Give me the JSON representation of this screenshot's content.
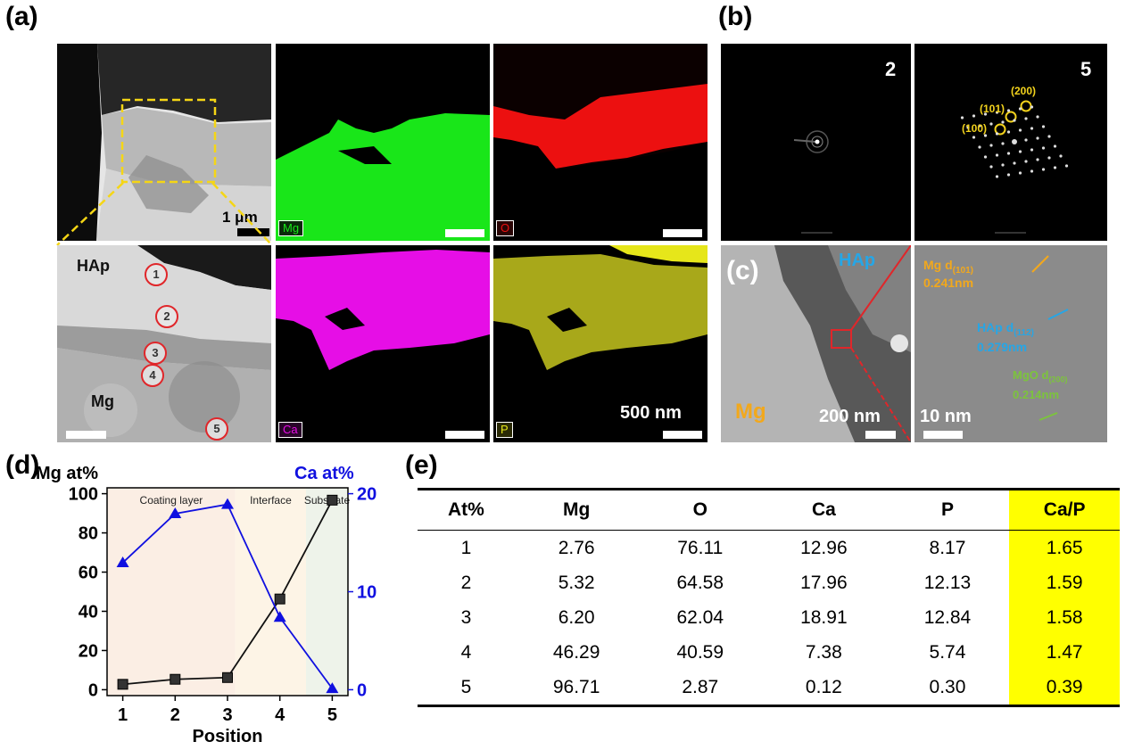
{
  "panel_labels": {
    "a": "(a)",
    "b": "(b)",
    "c": "(c)",
    "d": "(d)",
    "e": "(e)"
  },
  "panel_a": {
    "scale_1um": "1 μm",
    "scale_500nm": "500 nm",
    "hap_label": "HAp",
    "mg_label": "Mg",
    "map_tags": {
      "mg": "Mg",
      "o": "O",
      "ca": "Ca",
      "p": "P"
    },
    "map_colors": {
      "mg": "#19e619",
      "o": "#ec1010",
      "ca": "#e60ee6",
      "p": "#c8c81a"
    },
    "positions": [
      "1",
      "2",
      "3",
      "4",
      "5"
    ]
  },
  "panel_b": {
    "pattern_2": "2",
    "pattern_5": "5",
    "indices": [
      "(200)",
      "(101)",
      "(100)"
    ],
    "index_color": "#f2d21c"
  },
  "panel_c": {
    "hap": "HAp",
    "mg": "Mg",
    "scale_200nm": "200 nm",
    "scale_10nm": "10 nm",
    "mg_d_label": "Mg d",
    "mg_d_sub": "(101)",
    "mg_d_value": "0.241nm",
    "hap_d_label": "HAp d",
    "hap_d_sub": "(112)",
    "hap_d_value": "0.279nm",
    "mgo_d_label": "MgO d",
    "mgo_d_sub": "(200)",
    "mgo_d_value": "0.214nm",
    "colors": {
      "mg": "#f2a81c",
      "hap": "#26a6e6",
      "mgo": "#7cc43c"
    }
  },
  "panel_e": {
    "headers": [
      "At%",
      "Mg",
      "O",
      "Ca",
      "P",
      "Ca/P"
    ],
    "rows": [
      [
        "1",
        "2.76",
        "76.11",
        "12.96",
        "8.17",
        "1.65"
      ],
      [
        "2",
        "5.32",
        "64.58",
        "17.96",
        "12.13",
        "1.59"
      ],
      [
        "3",
        "6.20",
        "62.04",
        "18.91",
        "12.84",
        "1.58"
      ],
      [
        "4",
        "46.29",
        "40.59",
        "7.38",
        "5.74",
        "1.47"
      ],
      [
        "5",
        "96.71",
        "2.87",
        "0.12",
        "0.30",
        "0.39"
      ]
    ],
    "highlight_color": "#ffff00"
  },
  "chart_data": {
    "type": "line",
    "xlabel": "Position",
    "x": [
      1,
      2,
      3,
      4,
      5
    ],
    "xlim": [
      0.7,
      5.3
    ],
    "xticks": [
      "1",
      "2",
      "3",
      "4",
      "5"
    ],
    "left_axis": {
      "label": "Mg at%",
      "ylim": [
        -3,
        103
      ],
      "ticks": [
        0,
        20,
        40,
        60,
        80,
        100
      ],
      "color": "#000000"
    },
    "right_axis": {
      "label": "Ca at%",
      "ylim": [
        -0.6,
        20.6
      ],
      "ticks": [
        0,
        10,
        20
      ],
      "color": "#1010e0"
    },
    "regions": [
      {
        "label": "Coating layer",
        "from": 0.7,
        "to": 3.15,
        "color": "#fbeee4"
      },
      {
        "label": "Interface",
        "from": 3.15,
        "to": 4.5,
        "color": "#fdf4e6"
      },
      {
        "label": "Substrate",
        "from": 4.5,
        "to": 5.3,
        "color": "#eef3ea"
      }
    ],
    "series": [
      {
        "name": "Mg at%",
        "axis": "left",
        "marker": "square",
        "color": "#111111",
        "values": [
          2.76,
          5.32,
          6.2,
          46.29,
          96.71
        ]
      },
      {
        "name": "Ca at%",
        "axis": "right",
        "marker": "triangle",
        "color": "#1010e0",
        "values": [
          12.96,
          17.96,
          18.91,
          7.38,
          0.12
        ]
      }
    ],
    "grid": false
  }
}
